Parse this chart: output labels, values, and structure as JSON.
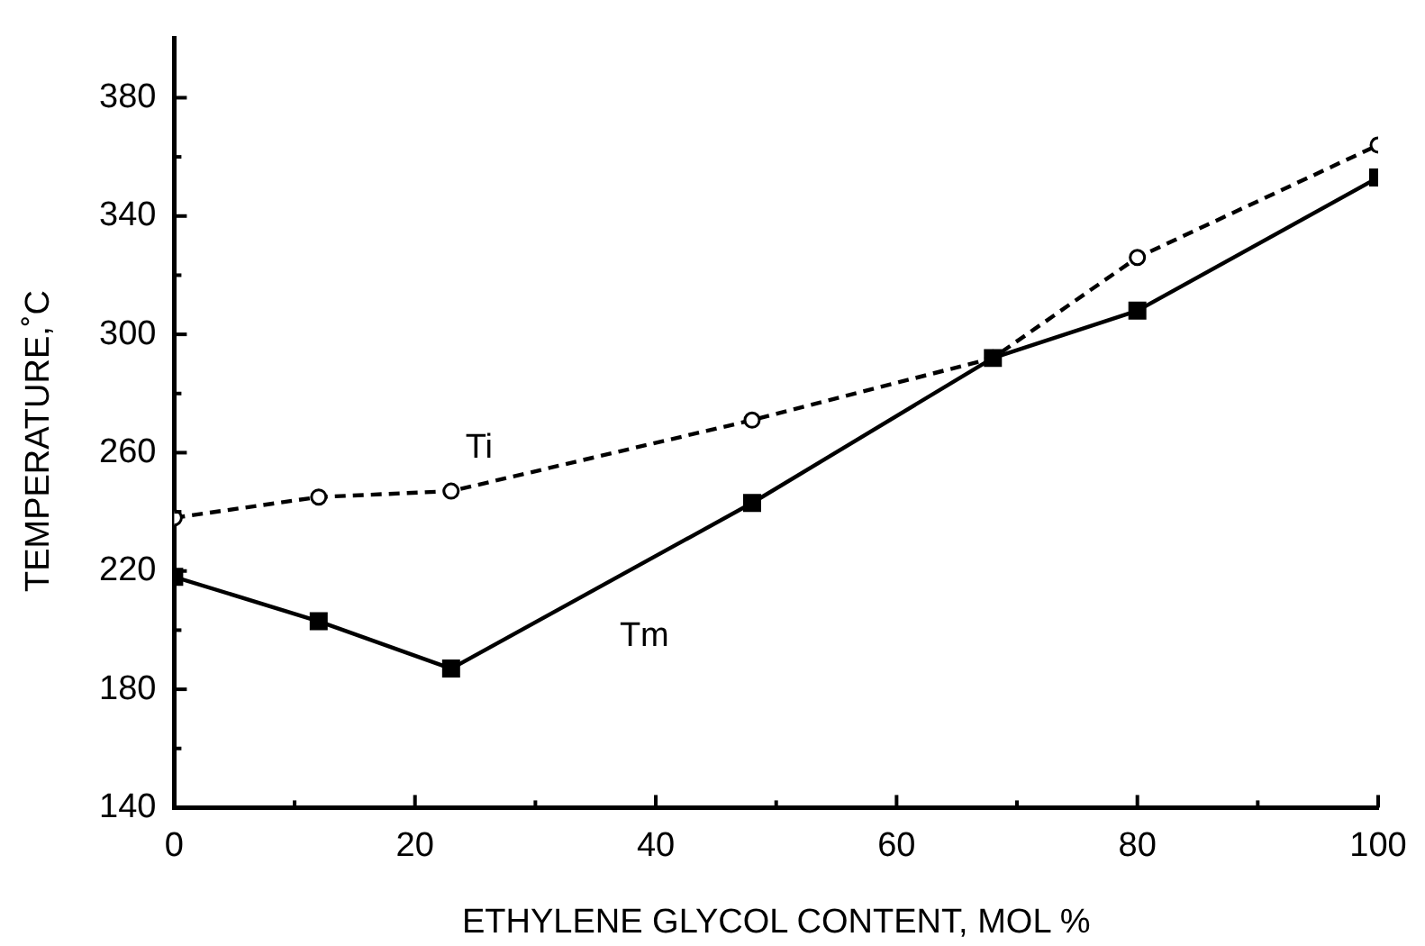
{
  "chart_data": {
    "type": "line",
    "xlabel": "ETHYLENE GLYCOL CONTENT, MOL %",
    "ylabel": "TEMPERATURE,˚C",
    "xlim": [
      0,
      100
    ],
    "ylim": [
      140,
      400
    ],
    "xticks": [
      0,
      {
        "value": 10,
        "label": null
      },
      20,
      {
        "value": 30,
        "label": null
      },
      40,
      {
        "value": 50,
        "label": null
      },
      60,
      {
        "value": 70,
        "label": null
      },
      80,
      {
        "value": 90,
        "label": null
      },
      100
    ],
    "yticks": [
      140,
      {
        "value": 160,
        "label": null
      },
      180,
      {
        "value": 200,
        "label": null
      },
      220,
      {
        "value": 240,
        "label": null
      },
      260,
      {
        "value": 280,
        "label": null
      },
      300,
      {
        "value": 320,
        "label": null
      },
      340,
      {
        "value": 360,
        "label": null
      },
      380
    ],
    "grid": false,
    "legend": false,
    "series": [
      {
        "name": "Ti",
        "color": "#000000",
        "marker": "circle",
        "line_style": "dashed",
        "x": [
          0,
          12,
          23,
          48,
          68,
          80,
          100
        ],
        "values": [
          238,
          245,
          247,
          271,
          292,
          326,
          364
        ]
      },
      {
        "name": "Tm",
        "color": "#000000",
        "marker": "square",
        "line_style": "solid",
        "x": [
          0,
          12,
          23,
          48,
          68,
          80,
          100
        ],
        "values": [
          218,
          203,
          187,
          243,
          292,
          308,
          353
        ]
      }
    ]
  }
}
